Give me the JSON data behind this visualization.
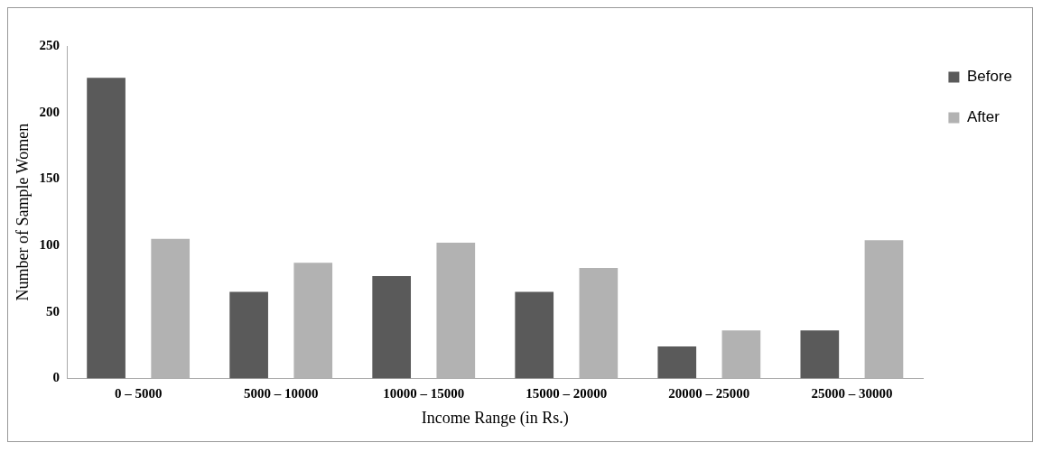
{
  "chart_data": {
    "type": "bar",
    "xlabel": "Income Range (in Rs.)",
    "ylabel": "Number of Sample Women",
    "categories": [
      "0 – 5000",
      "5000 – 10000",
      "10000 – 15000",
      "15000 – 20000",
      "20000 – 25000",
      "25000 – 30000"
    ],
    "series": [
      {
        "name": "Before",
        "color": "#5a5a5a",
        "values": [
          226,
          65,
          77,
          65,
          24,
          36
        ]
      },
      {
        "name": "After",
        "color": "#b2b2b2",
        "values": [
          105,
          87,
          102,
          83,
          36,
          104
        ]
      }
    ],
    "ylim": [
      0,
      250
    ],
    "yticks": [
      0,
      50,
      100,
      150,
      200,
      250
    ],
    "grid": false,
    "legend": "top right"
  }
}
